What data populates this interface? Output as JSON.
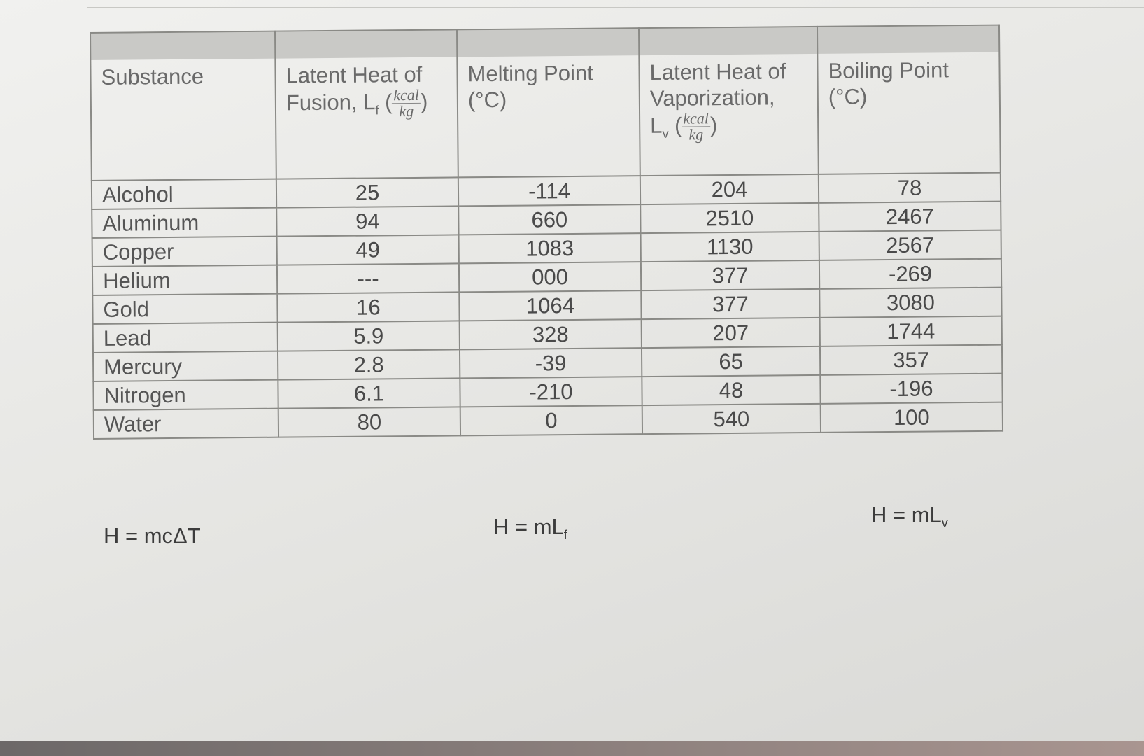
{
  "table": {
    "headers": [
      {
        "lines": [
          "Substance"
        ]
      },
      {
        "lines": [
          "Latent Heat of",
          "Fusion, L"
        ],
        "sub": "f",
        "open": " (",
        "num": "kcal",
        "den": "kg",
        "close": ")"
      },
      {
        "lines": [
          "Melting Point",
          "(°C)"
        ]
      },
      {
        "lines": [
          "Latent Heat of",
          "Vaporization,",
          "L"
        ],
        "sub": "v",
        "open": " (",
        "num": "kcal",
        "den": "kg",
        "close": ")"
      },
      {
        "lines": [
          "Boiling Point",
          "(°C)"
        ]
      }
    ],
    "rows": [
      [
        "Alcohol",
        "25",
        "-114",
        "204",
        "78"
      ],
      [
        "Aluminum",
        "94",
        "660",
        "2510",
        "2467"
      ],
      [
        "Copper",
        "49",
        "1083",
        "1130",
        "2567"
      ],
      [
        "Helium",
        "---",
        "000",
        "377",
        "-269"
      ],
      [
        "Gold",
        "16",
        "1064",
        "377",
        "3080"
      ],
      [
        "Lead",
        "5.9",
        "328",
        "207",
        "1744"
      ],
      [
        "Mercury",
        "2.8",
        "-39",
        "65",
        "357"
      ],
      [
        "Nitrogen",
        "6.1",
        "-210",
        "48",
        "-196"
      ],
      [
        "Water",
        "80",
        "0",
        "540",
        "100"
      ]
    ]
  },
  "formulas": [
    {
      "text": "H = mcΔT"
    },
    {
      "text": "H = mL",
      "sub": "f"
    },
    {
      "text": "H = mL",
      "sub": "v"
    }
  ]
}
